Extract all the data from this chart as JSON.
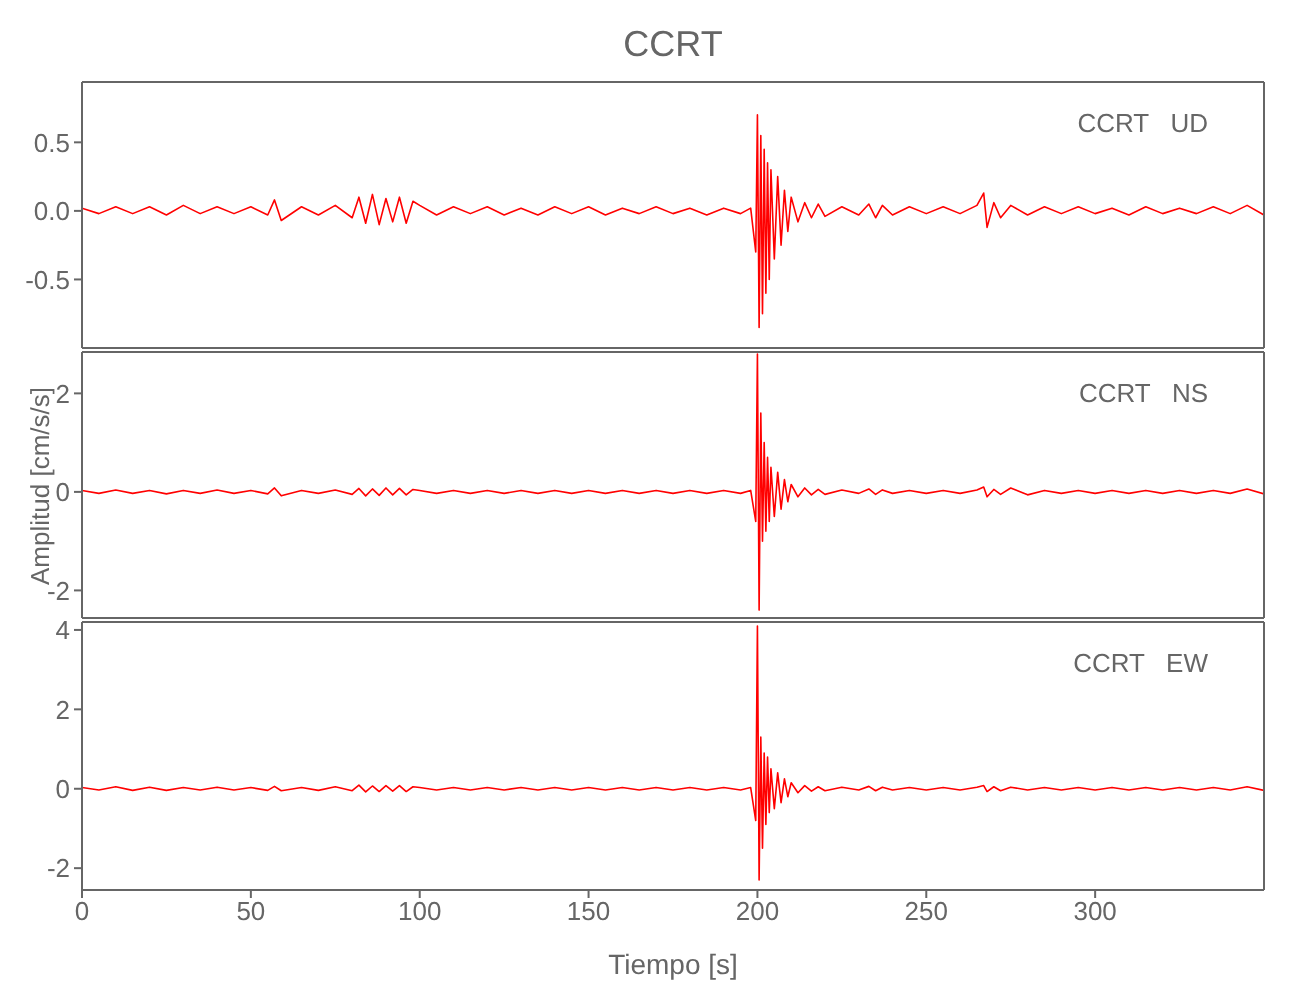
{
  "chart_data": [
    {
      "type": "line",
      "title": "CCRT",
      "annotations": [
        "CCRT   UD"
      ],
      "xlim": [
        0,
        350
      ],
      "xticks": [
        0,
        50,
        100,
        150,
        200,
        250,
        300
      ],
      "ylim": [
        -1.0,
        0.94
      ],
      "yticks": [
        -0.5,
        {
          "value": 0,
          "label": "0.0"
        },
        0.5
      ],
      "tick_labels": "y",
      "grid": false,
      "marker": "none",
      "x": [
        0,
        5,
        10,
        15,
        20,
        25,
        30,
        35,
        40,
        45,
        50,
        55,
        57,
        59,
        65,
        70,
        75,
        80,
        82,
        84,
        86,
        88,
        90,
        92,
        94,
        96,
        98,
        100,
        105,
        110,
        115,
        120,
        125,
        130,
        135,
        140,
        145,
        150,
        155,
        160,
        165,
        170,
        175,
        180,
        185,
        190,
        195,
        198,
        199.5,
        200,
        200.5,
        201,
        201.5,
        202,
        202.5,
        203,
        203.5,
        204,
        205,
        206,
        207,
        208,
        209,
        210,
        212,
        214,
        216,
        218,
        220,
        225,
        230,
        233,
        235,
        237,
        240,
        245,
        250,
        255,
        260,
        265,
        267,
        268,
        270,
        272,
        275,
        280,
        285,
        290,
        295,
        300,
        305,
        310,
        315,
        320,
        325,
        330,
        335,
        340,
        345,
        350
      ],
      "series": [
        {
          "color": "#ff0000",
          "values": [
            0.02,
            -0.02,
            0.03,
            -0.02,
            0.03,
            -0.03,
            0.04,
            -0.02,
            0.03,
            -0.02,
            0.03,
            -0.03,
            0.08,
            -0.07,
            0.03,
            -0.03,
            0.04,
            -0.05,
            0.1,
            -0.09,
            0.12,
            -0.1,
            0.09,
            -0.08,
            0.1,
            -0.09,
            0.07,
            0.04,
            -0.03,
            0.03,
            -0.02,
            0.03,
            -0.03,
            0.02,
            -0.03,
            0.03,
            -0.02,
            0.03,
            -0.03,
            0.02,
            -0.02,
            0.03,
            -0.02,
            0.02,
            -0.03,
            0.02,
            -0.02,
            0.02,
            -0.3,
            0.7,
            -0.85,
            0.55,
            -0.75,
            0.45,
            -0.6,
            0.35,
            -0.5,
            0.3,
            -0.35,
            0.25,
            -0.25,
            0.15,
            -0.15,
            0.1,
            -0.08,
            0.06,
            -0.05,
            0.05,
            -0.04,
            0.03,
            -0.03,
            0.05,
            -0.05,
            0.04,
            -0.03,
            0.03,
            -0.02,
            0.03,
            -0.02,
            0.04,
            0.13,
            -0.12,
            0.06,
            -0.05,
            0.04,
            -0.03,
            0.03,
            -0.02,
            0.03,
            -0.02,
            0.02,
            -0.03,
            0.03,
            -0.02,
            0.02,
            -0.02,
            0.03,
            -0.02,
            0.04,
            -0.03
          ]
        }
      ]
    },
    {
      "type": "line",
      "ylabel": "Amplitud [cm/s/s]",
      "annotations": [
        "CCRT   NS"
      ],
      "xlim": [
        0,
        350
      ],
      "xticks": [
        0,
        50,
        100,
        150,
        200,
        250,
        300
      ],
      "ylim": [
        -2.56,
        2.84
      ],
      "yticks": [
        -2,
        0,
        2
      ],
      "tick_labels": "y",
      "grid": false,
      "marker": "none",
      "x": [
        0,
        5,
        10,
        15,
        20,
        25,
        30,
        35,
        40,
        45,
        50,
        55,
        57,
        59,
        65,
        70,
        75,
        80,
        82,
        84,
        86,
        88,
        90,
        92,
        94,
        96,
        98,
        100,
        105,
        110,
        115,
        120,
        125,
        130,
        135,
        140,
        145,
        150,
        155,
        160,
        165,
        170,
        175,
        180,
        185,
        190,
        195,
        198,
        199.5,
        200,
        200.5,
        201,
        201.5,
        202,
        202.5,
        203,
        203.5,
        204,
        205,
        206,
        207,
        208,
        209,
        210,
        212,
        214,
        216,
        218,
        220,
        225,
        230,
        233,
        235,
        237,
        240,
        245,
        250,
        255,
        260,
        265,
        267,
        268,
        270,
        272,
        275,
        280,
        285,
        290,
        295,
        300,
        305,
        310,
        315,
        320,
        325,
        330,
        335,
        340,
        345,
        350
      ],
      "series": [
        {
          "color": "#ff0000",
          "values": [
            0.03,
            -0.03,
            0.04,
            -0.03,
            0.03,
            -0.04,
            0.03,
            -0.03,
            0.04,
            -0.03,
            0.03,
            -0.04,
            0.08,
            -0.08,
            0.03,
            -0.03,
            0.04,
            -0.05,
            0.07,
            -0.08,
            0.06,
            -0.07,
            0.08,
            -0.06,
            0.07,
            -0.06,
            0.05,
            0.03,
            -0.03,
            0.03,
            -0.03,
            0.03,
            -0.03,
            0.03,
            -0.03,
            0.03,
            -0.03,
            0.03,
            -0.03,
            0.03,
            -0.03,
            0.03,
            -0.03,
            0.03,
            -0.03,
            0.03,
            -0.03,
            0.03,
            -0.6,
            2.8,
            -2.4,
            1.6,
            -1.0,
            1.0,
            -0.8,
            0.7,
            -0.6,
            0.5,
            -0.5,
            0.4,
            -0.35,
            0.25,
            -0.2,
            0.15,
            -0.1,
            0.08,
            -0.06,
            0.05,
            -0.05,
            0.04,
            -0.03,
            0.06,
            -0.05,
            0.04,
            -0.03,
            0.03,
            -0.03,
            0.03,
            -0.03,
            0.04,
            0.1,
            -0.1,
            0.05,
            -0.05,
            0.08,
            -0.06,
            0.03,
            -0.03,
            0.03,
            -0.03,
            0.03,
            -0.03,
            0.03,
            -0.03,
            0.03,
            -0.03,
            0.03,
            -0.03,
            0.06,
            -0.04
          ]
        }
      ]
    },
    {
      "type": "line",
      "xlabel": "Tiempo [s]",
      "annotations": [
        "CCRT   EW"
      ],
      "xlim": [
        0,
        350
      ],
      "xticks": [
        0,
        50,
        100,
        150,
        200,
        250,
        300
      ],
      "ylim": [
        -2.55,
        4.2
      ],
      "yticks": [
        -2,
        0,
        2,
        4
      ],
      "grid": false,
      "marker": "none",
      "x": [
        0,
        5,
        10,
        15,
        20,
        25,
        30,
        35,
        40,
        45,
        50,
        55,
        57,
        59,
        65,
        70,
        75,
        80,
        82,
        84,
        86,
        88,
        90,
        92,
        94,
        96,
        98,
        100,
        105,
        110,
        115,
        120,
        125,
        130,
        135,
        140,
        145,
        150,
        155,
        160,
        165,
        170,
        175,
        180,
        185,
        190,
        195,
        198,
        199.5,
        200,
        200.5,
        201,
        201.5,
        202,
        202.5,
        203,
        203.5,
        204,
        205,
        206,
        207,
        208,
        209,
        210,
        212,
        214,
        216,
        218,
        220,
        225,
        230,
        233,
        235,
        237,
        240,
        245,
        250,
        255,
        260,
        265,
        267,
        268,
        270,
        272,
        275,
        280,
        285,
        290,
        295,
        300,
        305,
        310,
        315,
        320,
        325,
        330,
        335,
        340,
        345,
        350
      ],
      "series": [
        {
          "color": "#ff0000",
          "values": [
            0.03,
            -0.03,
            0.05,
            -0.04,
            0.04,
            -0.04,
            0.03,
            -0.03,
            0.04,
            -0.03,
            0.03,
            -0.04,
            0.06,
            -0.05,
            0.03,
            -0.04,
            0.05,
            -0.05,
            0.09,
            -0.08,
            0.07,
            -0.07,
            0.08,
            -0.06,
            0.08,
            -0.07,
            0.05,
            0.03,
            -0.03,
            0.03,
            -0.03,
            0.03,
            -0.03,
            0.03,
            -0.03,
            0.03,
            -0.03,
            0.03,
            -0.03,
            0.03,
            -0.03,
            0.03,
            -0.03,
            0.03,
            -0.03,
            0.03,
            -0.03,
            0.03,
            -0.8,
            4.1,
            -2.3,
            1.3,
            -1.5,
            0.9,
            -0.9,
            0.8,
            -0.6,
            0.5,
            -0.5,
            0.4,
            -0.35,
            0.25,
            -0.2,
            0.15,
            -0.1,
            0.08,
            -0.06,
            0.05,
            -0.05,
            0.04,
            -0.03,
            0.06,
            -0.05,
            0.04,
            -0.03,
            0.03,
            -0.03,
            0.03,
            -0.03,
            0.04,
            0.08,
            -0.07,
            0.05,
            -0.05,
            0.04,
            -0.03,
            0.03,
            -0.03,
            0.03,
            -0.03,
            0.03,
            -0.03,
            0.03,
            -0.03,
            0.03,
            -0.03,
            0.03,
            -0.03,
            0.05,
            -0.04
          ]
        }
      ]
    }
  ]
}
